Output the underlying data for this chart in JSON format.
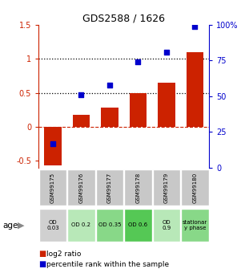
{
  "title": "GDS2588 / 1626",
  "samples": [
    "GSM99175",
    "GSM99176",
    "GSM99177",
    "GSM99178",
    "GSM99179",
    "GSM99180"
  ],
  "log2_ratio": [
    -0.57,
    0.18,
    0.28,
    0.5,
    0.65,
    1.1
  ],
  "percentile_rank_pct": [
    17,
    51,
    58,
    74,
    81,
    99
  ],
  "bar_color": "#cc2200",
  "dot_color": "#0000cc",
  "ylim_left": [
    -0.6,
    1.5
  ],
  "ylim_right": [
    0,
    100
  ],
  "yticks_left": [
    -0.5,
    0.0,
    0.5,
    1.0,
    1.5
  ],
  "yticks_right": [
    0,
    25,
    50,
    75,
    100
  ],
  "yticklabels_right": [
    "0",
    "25",
    "50",
    "75",
    "100%"
  ],
  "age_labels": [
    "OD\n0.03",
    "OD 0.2",
    "OD 0.35",
    "OD 0.6",
    "OD\n0.9",
    "stationar\ny phase"
  ],
  "age_bg_colors": [
    "#d0d0d0",
    "#b8e8b8",
    "#88d888",
    "#55c855",
    "#b8e8b8",
    "#88d888"
  ],
  "sample_bg_color": "#c8c8c8",
  "legend_bar_label": "log2 ratio",
  "legend_dot_label": "percentile rank within the sample"
}
